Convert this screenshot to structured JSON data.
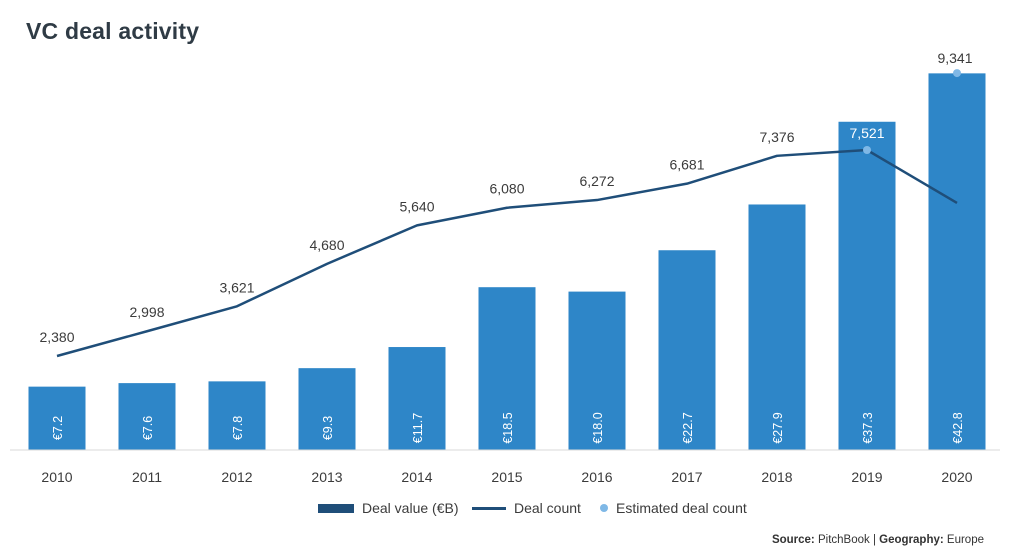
{
  "chart_data": {
    "type": "bar",
    "title": "VC deal activity",
    "categories": [
      "2010",
      "2011",
      "2012",
      "2013",
      "2014",
      "2015",
      "2016",
      "2017",
      "2018",
      "2019",
      "2020"
    ],
    "series": [
      {
        "name": "Deal value (€B)",
        "type": "bar",
        "values": [
          7.2,
          7.6,
          7.8,
          9.3,
          11.7,
          18.5,
          18.0,
          22.7,
          27.9,
          37.3,
          42.8
        ],
        "labels": [
          "€7.2",
          "€7.6",
          "€7.8",
          "€9.3",
          "€11.7",
          "€18.5",
          "€18.0",
          "€22.7",
          "€27.9",
          "€37.3",
          "€42.8"
        ],
        "color": "#2e86c8"
      },
      {
        "name": "Deal count",
        "type": "line",
        "values": [
          2380,
          2998,
          3621,
          4680,
          5640,
          6080,
          6272,
          6681,
          7376,
          7521,
          6200
        ],
        "labels": [
          "2,380",
          "2,998",
          "3,621",
          "4,680",
          "5,640",
          "6,080",
          "6,272",
          "6,681",
          "7,376",
          "7,521",
          ""
        ],
        "color": "#1f4e79"
      },
      {
        "name": "Estimated deal count",
        "type": "scatter",
        "points": [
          {
            "category": "2019",
            "value": 7521
          },
          {
            "category": "2020",
            "value": 9341,
            "label": "9,341"
          }
        ],
        "color": "#7fb8e6"
      }
    ],
    "legend_position": "bottom-center",
    "grid": false
  },
  "legend": {
    "deal_value": "Deal value (€B)",
    "deal_count": "Deal count",
    "estimated": "Estimated deal count"
  },
  "source": {
    "source_label": "Source:",
    "source_value": "PitchBook",
    "separator": "|",
    "geo_label": "Geography:",
    "geo_value": "Europe"
  },
  "colors": {
    "bar": "#2e86c8",
    "line": "#1f4e79",
    "estimate": "#7fb8e6",
    "legend_bar": "#1f4e79"
  }
}
